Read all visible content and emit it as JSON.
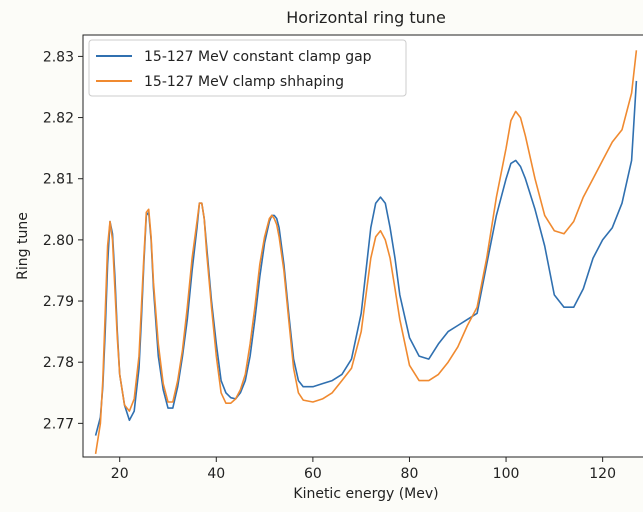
{
  "chart_data": {
    "type": "line",
    "title": "Horizontal ring tune",
    "xlabel": "Kinetic energy (Mev)",
    "ylabel": "Ring tune",
    "xlim": [
      12.4,
      129.6
    ],
    "ylim": [
      2.7645,
      2.8335
    ],
    "xticks": [
      20,
      40,
      60,
      80,
      100,
      120
    ],
    "yticks": [
      2.77,
      2.78,
      2.79,
      2.8,
      2.81,
      2.82,
      2.83
    ],
    "ytick_labels": [
      "2.77",
      "2.78",
      "2.79",
      "2.80",
      "2.81",
      "2.82",
      "2.83"
    ],
    "grid": false,
    "legend_position": "top-left",
    "series": [
      {
        "name": "15-127 MeV constant clamp gap",
        "color": "#3070b0",
        "x": [
          15,
          16,
          16.5,
          17,
          17.5,
          18,
          18.5,
          19,
          19.5,
          20,
          21,
          22,
          23,
          24,
          24.5,
          25,
          25.5,
          26,
          26.5,
          27,
          28,
          29,
          30,
          31,
          32,
          33,
          34,
          35,
          36,
          36.5,
          37,
          37.5,
          38,
          39,
          40,
          41,
          42,
          43,
          44,
          45,
          46,
          47,
          48,
          49,
          50,
          51,
          51.5,
          52,
          52.5,
          53,
          54,
          55,
          56,
          57,
          58,
          60,
          62,
          64,
          66,
          68,
          70,
          71,
          72,
          73,
          74,
          75,
          76,
          77,
          78,
          80,
          82,
          84,
          86,
          88,
          90,
          92,
          94,
          96,
          98,
          100,
          101,
          102,
          103,
          104,
          106,
          108,
          110,
          112,
          114,
          116,
          118,
          120,
          122,
          124,
          126,
          127
        ],
        "y": [
          2.768,
          2.771,
          2.776,
          2.785,
          2.796,
          2.803,
          2.801,
          2.794,
          2.785,
          2.778,
          2.773,
          2.7705,
          2.772,
          2.779,
          2.787,
          2.796,
          2.804,
          2.8045,
          2.8,
          2.792,
          2.781,
          2.7755,
          2.7725,
          2.7725,
          2.776,
          2.781,
          2.787,
          2.795,
          2.802,
          2.806,
          2.806,
          2.8035,
          2.799,
          2.79,
          2.783,
          2.777,
          2.775,
          2.7742,
          2.774,
          2.775,
          2.777,
          2.781,
          2.787,
          2.794,
          2.7995,
          2.803,
          2.804,
          2.804,
          2.8035,
          2.802,
          2.796,
          2.788,
          2.7805,
          2.777,
          2.776,
          2.776,
          2.7765,
          2.777,
          2.778,
          2.7805,
          2.788,
          2.795,
          2.802,
          2.806,
          2.807,
          2.806,
          2.802,
          2.797,
          2.791,
          2.784,
          2.781,
          2.7805,
          2.783,
          2.785,
          2.786,
          2.787,
          2.788,
          2.796,
          2.804,
          2.81,
          2.8125,
          2.813,
          2.812,
          2.81,
          2.805,
          2.799,
          2.791,
          2.789,
          2.789,
          2.792,
          2.797,
          2.8,
          2.802,
          2.806,
          2.813,
          2.826
        ]
      },
      {
        "name": "15-127 MeV clamp shhaping",
        "color": "#f08a30",
        "x": [
          15,
          16,
          16.5,
          17,
          17.5,
          18,
          18.5,
          19,
          19.5,
          20,
          21,
          22,
          23,
          24,
          24.5,
          25,
          25.5,
          26,
          26.5,
          27,
          28,
          29,
          30,
          31,
          32,
          33,
          34,
          35,
          36,
          36.5,
          37,
          37.5,
          38,
          39,
          40,
          41,
          42,
          43,
          44,
          45,
          46,
          47,
          48,
          49,
          50,
          51,
          51.5,
          52,
          52.5,
          53,
          54,
          55,
          56,
          57,
          58,
          60,
          62,
          64,
          66,
          68,
          70,
          71,
          72,
          73,
          74,
          75,
          76,
          77,
          78,
          80,
          82,
          84,
          86,
          88,
          90,
          92,
          94,
          96,
          98,
          100,
          101,
          102,
          103,
          104,
          106,
          108,
          110,
          112,
          114,
          116,
          118,
          120,
          122,
          124,
          126,
          127
        ],
        "y": [
          2.765,
          2.77,
          2.777,
          2.788,
          2.799,
          2.803,
          2.8,
          2.792,
          2.784,
          2.778,
          2.773,
          2.772,
          2.774,
          2.781,
          2.789,
          2.797,
          2.8045,
          2.805,
          2.8005,
          2.793,
          2.783,
          2.7765,
          2.7735,
          2.7735,
          2.777,
          2.782,
          2.789,
          2.797,
          2.803,
          2.806,
          2.806,
          2.8035,
          2.798,
          2.789,
          2.781,
          2.775,
          2.7733,
          2.7733,
          2.774,
          2.7755,
          2.778,
          2.783,
          2.789,
          2.796,
          2.8005,
          2.8035,
          2.804,
          2.8035,
          2.8025,
          2.8005,
          2.795,
          2.787,
          2.779,
          2.775,
          2.7738,
          2.7735,
          2.774,
          2.775,
          2.777,
          2.779,
          2.785,
          2.791,
          2.797,
          2.8005,
          2.8015,
          2.8,
          2.797,
          2.792,
          2.787,
          2.7795,
          2.777,
          2.777,
          2.778,
          2.78,
          2.7825,
          2.786,
          2.789,
          2.797,
          2.807,
          2.815,
          2.8195,
          2.821,
          2.82,
          2.817,
          2.81,
          2.804,
          2.8015,
          2.801,
          2.803,
          2.807,
          2.81,
          2.813,
          2.816,
          2.818,
          2.824,
          2.831
        ]
      }
    ]
  }
}
